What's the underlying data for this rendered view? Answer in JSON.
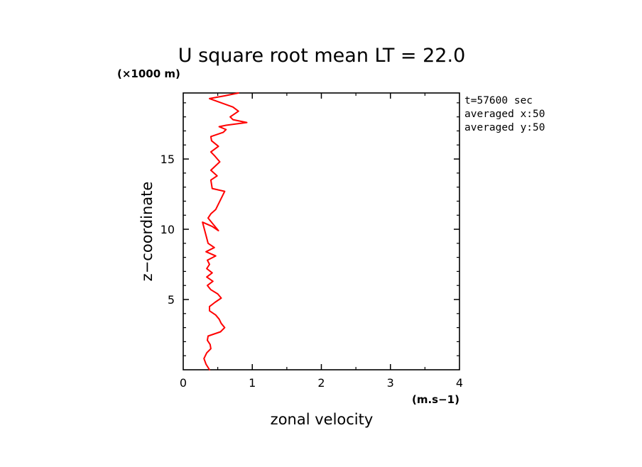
{
  "chart_data": {
    "type": "line",
    "title": "U square root mean LT = 22.0",
    "xlabel": "zonal velocity",
    "ylabel": "z−coordinate",
    "x_unit": "(m.s−1)",
    "y_unit": "(×1000 m)",
    "xlim": [
      0,
      4
    ],
    "ylim": [
      0,
      19.7
    ],
    "x_ticks": [
      "0",
      "1",
      "2",
      "3",
      "4"
    ],
    "y_ticks": [
      "5",
      "10",
      "15"
    ],
    "annotations": [
      "t=57600 sec",
      "averaged  x:50",
      "averaged  y:50"
    ],
    "series_color": "#ff0000",
    "series": [
      {
        "x": [
          0.38,
          0.33,
          0.3,
          0.34,
          0.4,
          0.39,
          0.35,
          0.36,
          0.54,
          0.6,
          0.55,
          0.52,
          0.47,
          0.38,
          0.38,
          0.46,
          0.55,
          0.5,
          0.4,
          0.35,
          0.43,
          0.34,
          0.42,
          0.34,
          0.38,
          0.35,
          0.47,
          0.33,
          0.45,
          0.36,
          0.28,
          0.42,
          0.51,
          0.36,
          0.4,
          0.47,
          0.6,
          0.42,
          0.4,
          0.49,
          0.4,
          0.53,
          0.46,
          0.4,
          0.51,
          0.41,
          0.4,
          0.58,
          0.62,
          0.52,
          0.62,
          0.92,
          0.72,
          0.68,
          0.8,
          0.72,
          0.38,
          0.6,
          0.8
        ],
        "y": [
          0.0,
          0.4,
          0.8,
          1.2,
          1.5,
          1.8,
          2.1,
          2.4,
          2.7,
          3.0,
          3.3,
          3.6,
          3.9,
          4.2,
          4.5,
          4.8,
          5.1,
          5.4,
          5.7,
          6.0,
          6.3,
          6.6,
          6.9,
          7.2,
          7.5,
          7.8,
          8.1,
          8.4,
          8.7,
          9.0,
          10.5,
          10.2,
          9.9,
          10.8,
          11.1,
          11.4,
          12.7,
          12.9,
          13.5,
          13.8,
          14.2,
          14.8,
          15.2,
          15.5,
          15.9,
          16.3,
          16.6,
          16.9,
          17.1,
          17.3,
          17.4,
          17.6,
          17.8,
          18.0,
          18.4,
          18.7,
          19.3,
          19.5,
          19.7
        ]
      }
    ]
  }
}
